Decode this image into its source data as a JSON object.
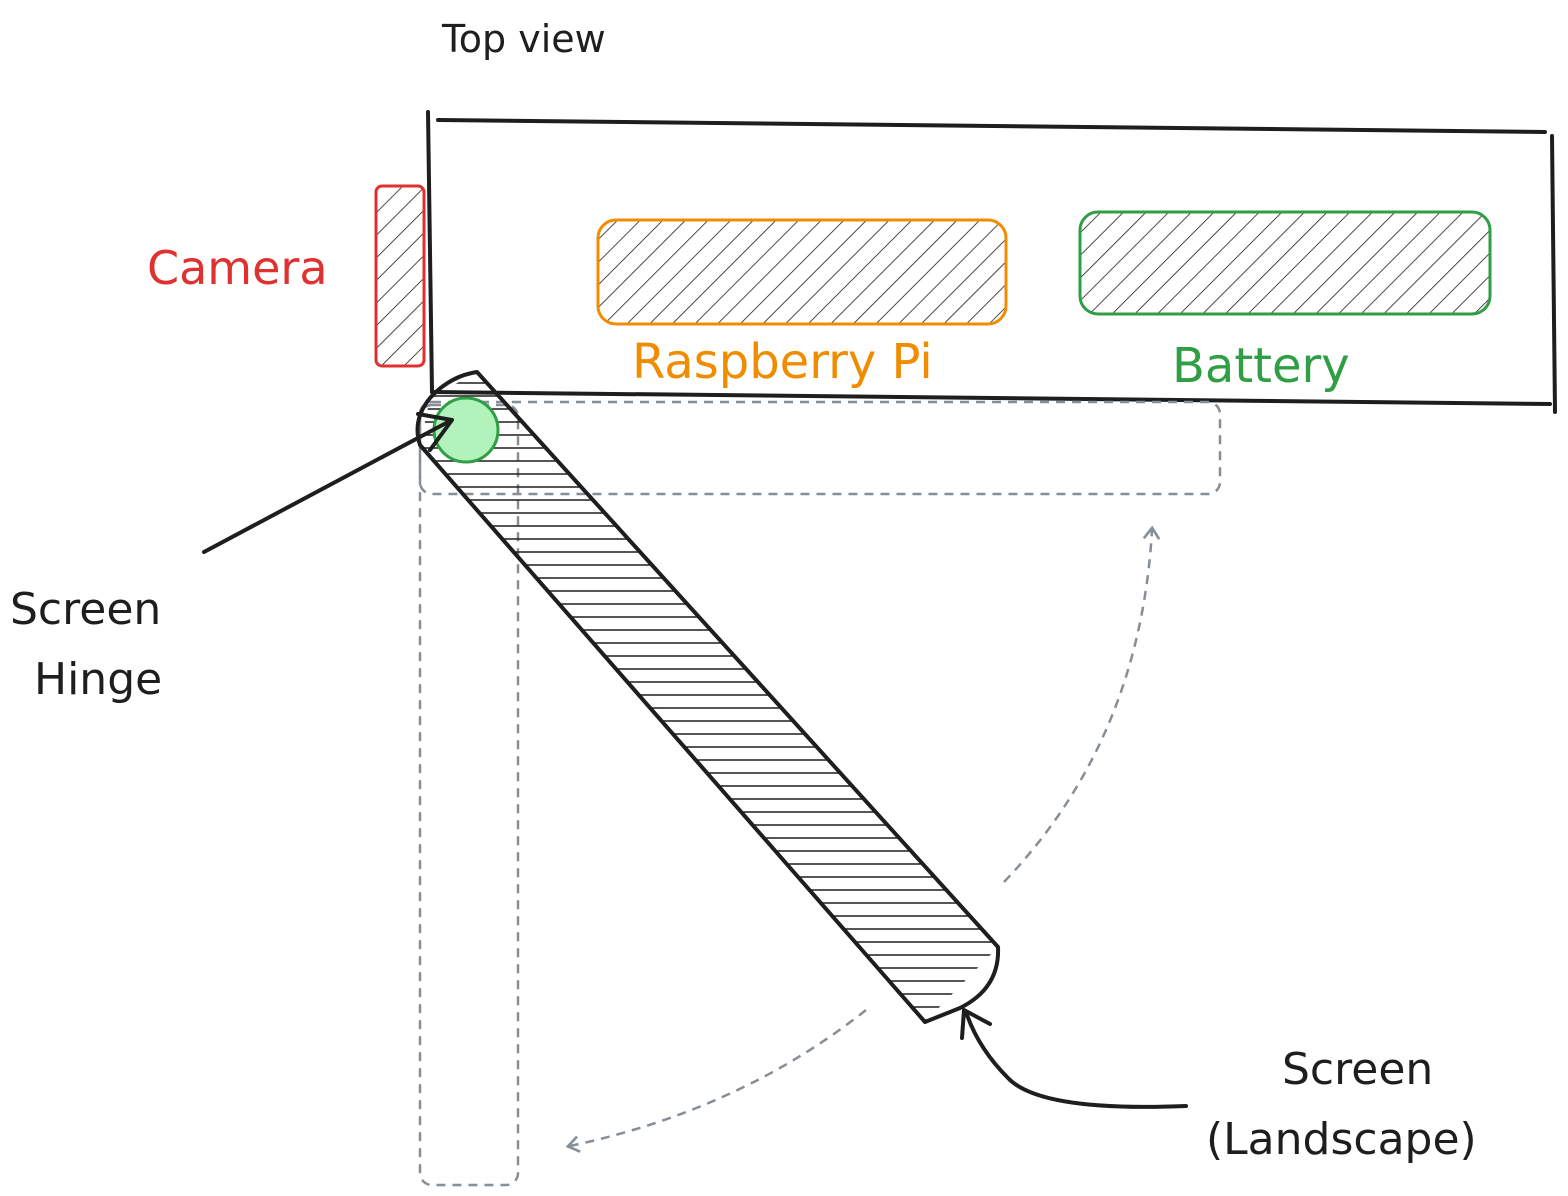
{
  "title": "Top view",
  "labels": {
    "camera": "Camera",
    "raspberry_pi": "Raspberry Pi",
    "battery": "Battery",
    "hinge_line1": "Screen",
    "hinge_line2": "Hinge",
    "screen_line1": "Screen",
    "screen_line2": "(Landscape)"
  },
  "colors": {
    "ink": "#1e1e1e",
    "camera": "#e03131",
    "raspberry_pi": "#f08c00",
    "battery": "#2f9e44",
    "hinge_fill": "#b2f2bb",
    "dashed": "#868e96"
  }
}
